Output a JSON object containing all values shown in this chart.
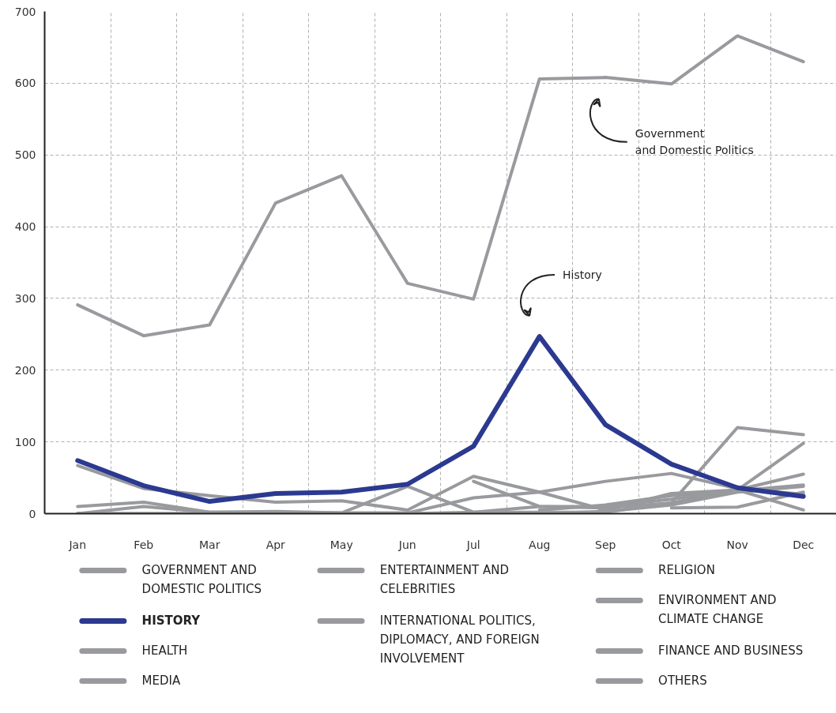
{
  "chart_data": {
    "type": "line",
    "categories": [
      "Jan",
      "Feb",
      "Mar",
      "Apr",
      "May",
      "Jun",
      "Jul",
      "Aug",
      "Sep",
      "Oct",
      "Nov",
      "Dec"
    ],
    "ylim": [
      0,
      700
    ],
    "yticks": [
      0,
      100,
      200,
      300,
      400,
      500,
      600,
      700
    ],
    "grid": true,
    "legend": "bottom",
    "line_style": "solid",
    "marker": "none",
    "series": [
      {
        "name": "GOVERNMENT AND DOMESTIC POLITICS",
        "color": "#999a9e",
        "values": [
          291,
          248,
          263,
          433,
          471,
          321,
          299,
          606,
          608,
          599,
          666,
          630
        ]
      },
      {
        "name": "HISTORY",
        "color": "#2b3990",
        "values": [
          74,
          39,
          17,
          28,
          30,
          41,
          94,
          247,
          124,
          69,
          36,
          24
        ]
      },
      {
        "name": "HEALTH",
        "color": "#999a9e",
        "values": [
          67,
          35,
          25,
          16,
          18,
          5,
          52,
          30,
          5,
          28,
          33,
          5
        ]
      },
      {
        "name": "MEDIA",
        "color": "#999a9e",
        "values": [
          10,
          16,
          2,
          2,
          1,
          1,
          22,
          30,
          45,
          56,
          35,
          27
        ]
      },
      {
        "name": "ENTERTAINMENT AND CELEBRITIES",
        "color": "#999a9e",
        "values": [
          0,
          10,
          2,
          3,
          1,
          38,
          2,
          2,
          2,
          15,
          120,
          110
        ]
      },
      {
        "name": "INTERNATIONAL POLITICS, DIPLOMACY, AND FOREIGN INVOLVEMENT",
        "color": "#999a9e",
        "values": [
          null,
          null,
          null,
          null,
          null,
          null,
          45,
          10,
          8,
          15,
          33,
          98
        ]
      },
      {
        "name": "RELIGION",
        "color": "#999a9e",
        "values": [
          0,
          0,
          0,
          0,
          0,
          0,
          2,
          10,
          10,
          20,
          33,
          55
        ]
      },
      {
        "name": "ENVIRONMENT AND CLIMATE CHANGE",
        "color": "#999a9e",
        "values": [
          null,
          null,
          null,
          null,
          null,
          null,
          null,
          5,
          12,
          25,
          32,
          40
        ]
      },
      {
        "name": "FINANCE AND BUSINESS",
        "color": "#999a9e",
        "values": [
          null,
          null,
          null,
          null,
          null,
          null,
          null,
          null,
          null,
          8,
          9,
          30
        ]
      },
      {
        "name": "OTHERS",
        "color": "#999a9e",
        "values": [
          0,
          0,
          0,
          0,
          0,
          0,
          0,
          0,
          3,
          12,
          30,
          38
        ]
      }
    ],
    "annotations": [
      "Government\nand Domestic Politics",
      "History"
    ]
  }
}
